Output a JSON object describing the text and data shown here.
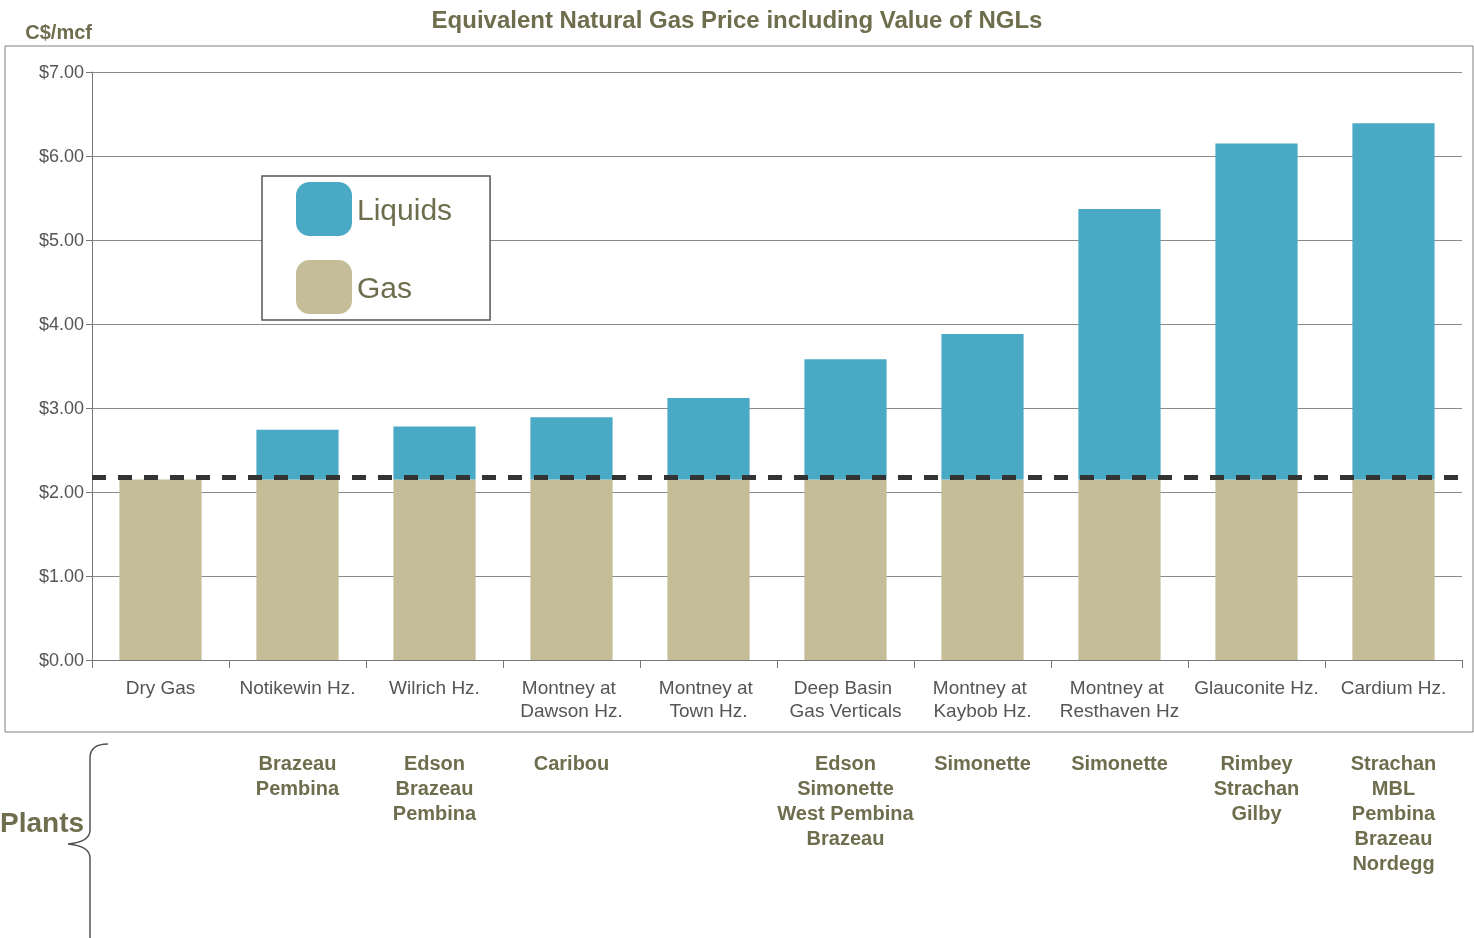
{
  "chart_data": {
    "type": "bar",
    "title": "Equivalent Natural Gas Price including Value of NGLs",
    "ylabel": "C$/mcf",
    "categories": [
      "Dry Gas",
      "Notikewin Hz.",
      "Wilrich Hz.",
      "Montney at Dawson Hz.",
      "Montney at Town Hz.",
      "Deep Basin Gas Verticals",
      "Montney at Kaybob Hz.",
      "Montney at Resthaven Hz",
      "Glauconite Hz.",
      "Cardium Hz."
    ],
    "stacked": true,
    "series": [
      {
        "name": "Gas",
        "color": "#c4bd97",
        "values": [
          2.15,
          2.15,
          2.15,
          2.15,
          2.15,
          2.15,
          2.15,
          2.15,
          2.15,
          2.15
        ]
      },
      {
        "name": "Liquids",
        "color": "#4aaac5",
        "values": [
          0,
          0.59,
          0.63,
          0.74,
          0.97,
          1.43,
          1.73,
          3.22,
          4.0,
          4.24
        ]
      }
    ],
    "ylim": [
      0,
      7
    ],
    "yticks": [
      {
        "value": 0,
        "label": "$0.00"
      },
      {
        "value": 1,
        "label": "$1.00"
      },
      {
        "value": 2,
        "label": "$2.00"
      },
      {
        "value": 3,
        "label": "$3.00"
      },
      {
        "value": 4,
        "label": "$4.00"
      },
      {
        "value": 5,
        "label": "$5.00"
      },
      {
        "value": 6,
        "label": "$6.00"
      },
      {
        "value": 7,
        "label": "$7.00"
      }
    ],
    "grid": "y",
    "legend": "top left",
    "ref_lines": [
      {
        "axis": "y",
        "value": 2.18,
        "color": "#333333",
        "line_style": "dashed"
      }
    ],
    "annotations": [
      "Brazeau\nPembina",
      "Edson\nBrazeau\nPembina",
      "Caribou",
      "Edson\nSimonette\nWest Pembina\nBrazeau",
      "Simonette",
      "Simonette",
      "Rimbey\nStrachan\nGilby",
      "Strachan\nMBL\nPembina\nBrazeau\nNordegg",
      "Plants"
    ]
  }
}
